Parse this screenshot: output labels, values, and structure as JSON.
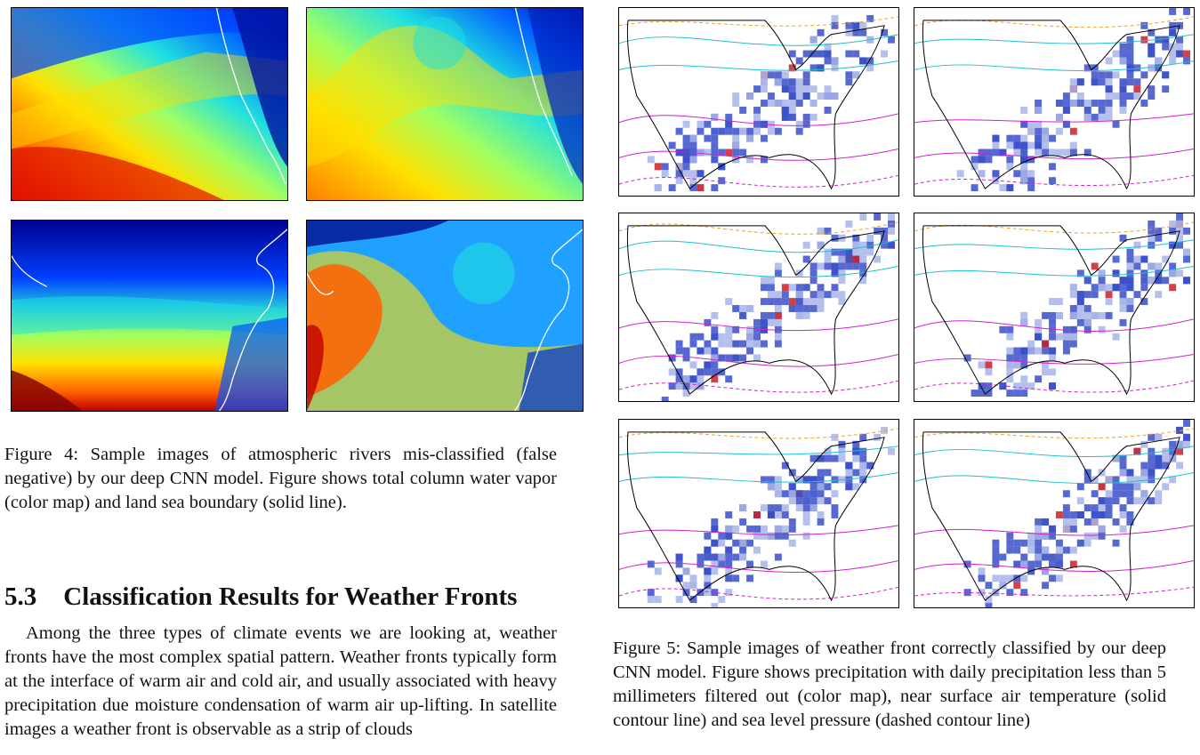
{
  "figure4": {
    "caption": "Figure 4: Sample images of atmospheric rivers mis-classified (false negative) by our deep CNN model. Figure shows total column water vapor (color map) and land sea boundary (solid line).",
    "colormap": [
      "#00008f",
      "#0030ff",
      "#00a0ff",
      "#20e0e0",
      "#a0ff60",
      "#ffe000",
      "#ff8000",
      "#e01000",
      "#800000"
    ]
  },
  "section": {
    "number": "5.3",
    "title": "Classification Results for Weather Fronts",
    "paragraph": "Among the three types of climate events we are looking at, weather fronts have the most complex spatial pattern. Weather fronts typically form at the interface of warm air and cold air, and usually associated with heavy precipitation due moisture condensation of warm air up-lifting. In satellite images a weather front is observable as a strip of clouds"
  },
  "figure5": {
    "caption": "Figure 5: Sample images of weather front correctly classified by our deep CNN model. Figure shows precipitation with daily precipitation less than 5 millimeters filtered out (color map), near surface air temperature (solid contour line) and sea level pressure (dashed contour line)",
    "colors": {
      "precip_low": "#3a4fc8",
      "precip_mid": "#a8b4e8",
      "precip_high": "#c8202a",
      "temp_contour_cold": "#20c0d0",
      "temp_contour_warm": "#d020d0",
      "pressure_contour": "#f0a020"
    }
  }
}
